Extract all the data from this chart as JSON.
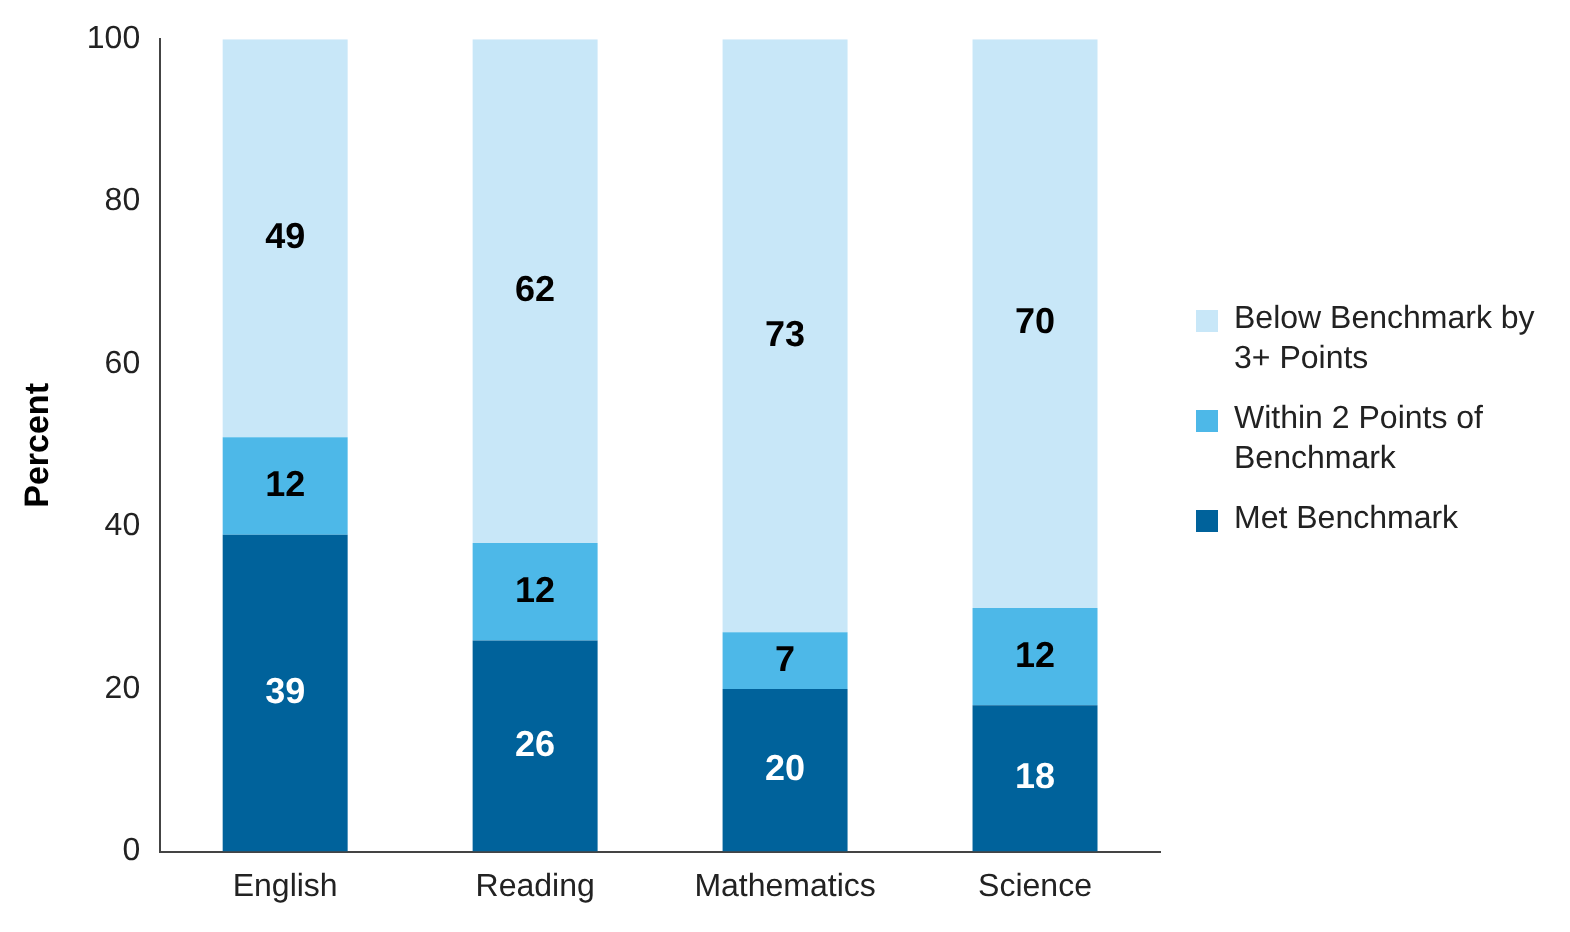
{
  "chart_data": {
    "type": "bar",
    "stacked": true,
    "ylabel": "Percent",
    "categories": [
      "English",
      "Reading",
      "Mathematics",
      "Science"
    ],
    "series": [
      {
        "name": "Met Benchmark",
        "color": "#00629b",
        "values": [
          39,
          26,
          20,
          18
        ]
      },
      {
        "name": "Within 2 Points of Benchmark",
        "color": "#4db8e8",
        "values": [
          12,
          12,
          7,
          12
        ]
      },
      {
        "name": "Below Benchmark by 3+ Points",
        "color": "#c8e7f8",
        "values": [
          49,
          62,
          73,
          70
        ]
      }
    ],
    "ylim": [
      0,
      100
    ],
    "yticks": [
      0,
      20,
      40,
      60,
      80,
      100
    ],
    "grid": false,
    "legend": "right",
    "data_labels": true
  }
}
